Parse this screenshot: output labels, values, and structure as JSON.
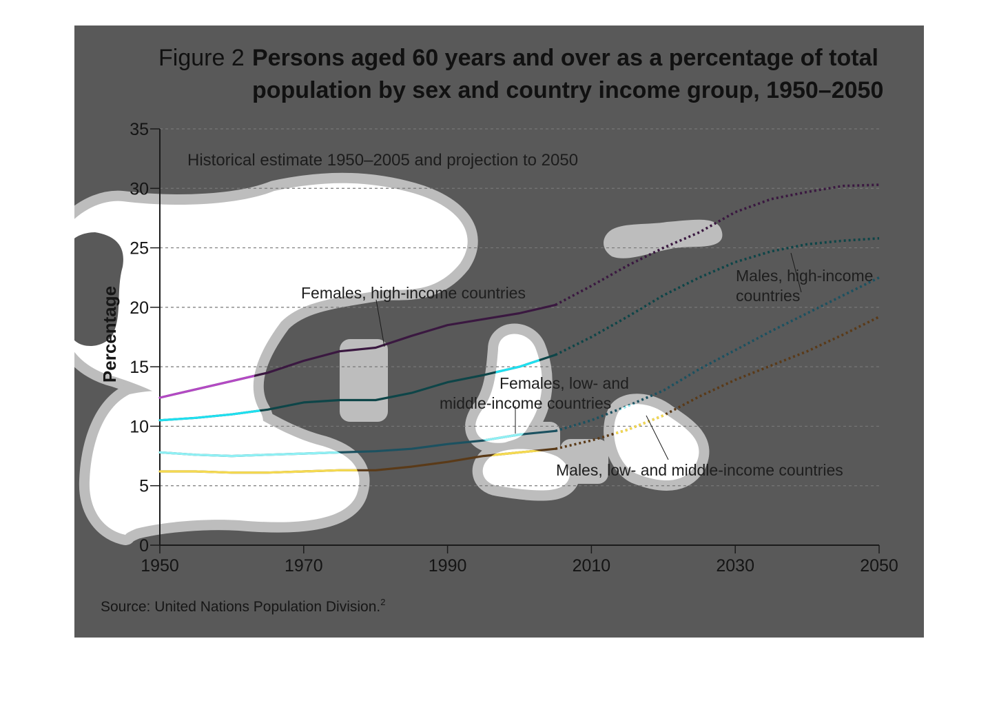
{
  "figure": {
    "number": "Figure 2",
    "title_line1": "Persons aged 60 years and over as a percentage of total",
    "title_line2": "population by sex and country income group, 1950–2050"
  },
  "source": "Source: United Nations Population Division.",
  "source_note": "2",
  "colors": {
    "background": "#595959",
    "grid": "#777777",
    "axis": "#1a1a1a",
    "cloud_fill": "#ffffff",
    "cloud_halo": "#bdbdbd"
  },
  "chart_data": {
    "type": "line",
    "subtitle": "Historical estimate 1950–2005 and projection to 2050",
    "xlabel": "",
    "ylabel": "Percentage",
    "xlim": [
      1950,
      2050
    ],
    "ylim": [
      0,
      35
    ],
    "x_ticks": [
      "1950",
      "1970",
      "1990",
      "2010",
      "2030",
      "2050"
    ],
    "y_ticks": [
      "0",
      "5",
      "10",
      "15",
      "20",
      "25",
      "30",
      "35"
    ],
    "grid": "horizontal dashed",
    "historical_end": 2005,
    "series": [
      {
        "name": "Females, high-income countries",
        "color": "#3a1840",
        "highlight": "#b34ac4",
        "x": [
          1950,
          1955,
          1960,
          1965,
          1970,
          1975,
          1980,
          1985,
          1990,
          1995,
          2000,
          2005,
          2010,
          2015,
          2020,
          2025,
          2030,
          2035,
          2040,
          2045,
          2050
        ],
        "y": [
          12.4,
          13.1,
          13.8,
          14.5,
          15.5,
          16.3,
          16.6,
          17.6,
          18.5,
          19.0,
          19.5,
          20.2,
          21.8,
          23.5,
          25.0,
          26.3,
          28.0,
          29.1,
          29.7,
          30.2,
          30.3
        ]
      },
      {
        "name": "Males, high-income countries",
        "color": "#0e4548",
        "highlight": "#1fe0f0",
        "x": [
          1950,
          1955,
          1960,
          1965,
          1970,
          1975,
          1980,
          1985,
          1990,
          1995,
          2000,
          2005,
          2010,
          2015,
          2020,
          2025,
          2030,
          2035,
          2040,
          2045,
          2050
        ],
        "y": [
          10.5,
          10.7,
          11.0,
          11.4,
          12.0,
          12.2,
          12.2,
          12.8,
          13.7,
          14.3,
          15.0,
          16.0,
          17.5,
          19.2,
          21.0,
          22.5,
          23.8,
          24.7,
          25.3,
          25.6,
          25.8
        ]
      },
      {
        "name": "Females, low- and middle-income countries",
        "color": "#1c5160",
        "highlight": "#8ff0f4",
        "x": [
          1950,
          1955,
          1960,
          1965,
          1970,
          1975,
          1980,
          1985,
          1990,
          1995,
          2000,
          2005,
          2010,
          2015,
          2020,
          2025,
          2030,
          2035,
          2040,
          2045,
          2050
        ],
        "y": [
          7.8,
          7.6,
          7.5,
          7.6,
          7.7,
          7.8,
          7.9,
          8.1,
          8.5,
          8.8,
          9.3,
          9.6,
          10.5,
          11.7,
          13.0,
          14.8,
          16.4,
          18.0,
          19.5,
          21.0,
          22.5
        ]
      },
      {
        "name": "Males, low- and middle-income countries",
        "color": "#5a3a18",
        "highlight": "#f5da50",
        "x": [
          1950,
          1955,
          1960,
          1965,
          1970,
          1975,
          1980,
          1985,
          1990,
          1995,
          2000,
          2005,
          2010,
          2015,
          2020,
          2025,
          2030,
          2035,
          2040,
          2045,
          2050
        ],
        "y": [
          6.2,
          6.2,
          6.1,
          6.1,
          6.2,
          6.3,
          6.3,
          6.6,
          7.0,
          7.5,
          7.8,
          8.1,
          8.8,
          9.7,
          10.9,
          12.5,
          13.9,
          15.1,
          16.3,
          17.7,
          19.2
        ]
      }
    ],
    "labels": {
      "females_high_line1": "Females, high-income countries",
      "males_high_line1": "Males, high-income",
      "males_high_line2": "countries",
      "females_low_line1": "Females, low- and",
      "females_low_line2": "middle-income countries",
      "males_low_line1": "Males, low- and middle-income countries"
    }
  }
}
